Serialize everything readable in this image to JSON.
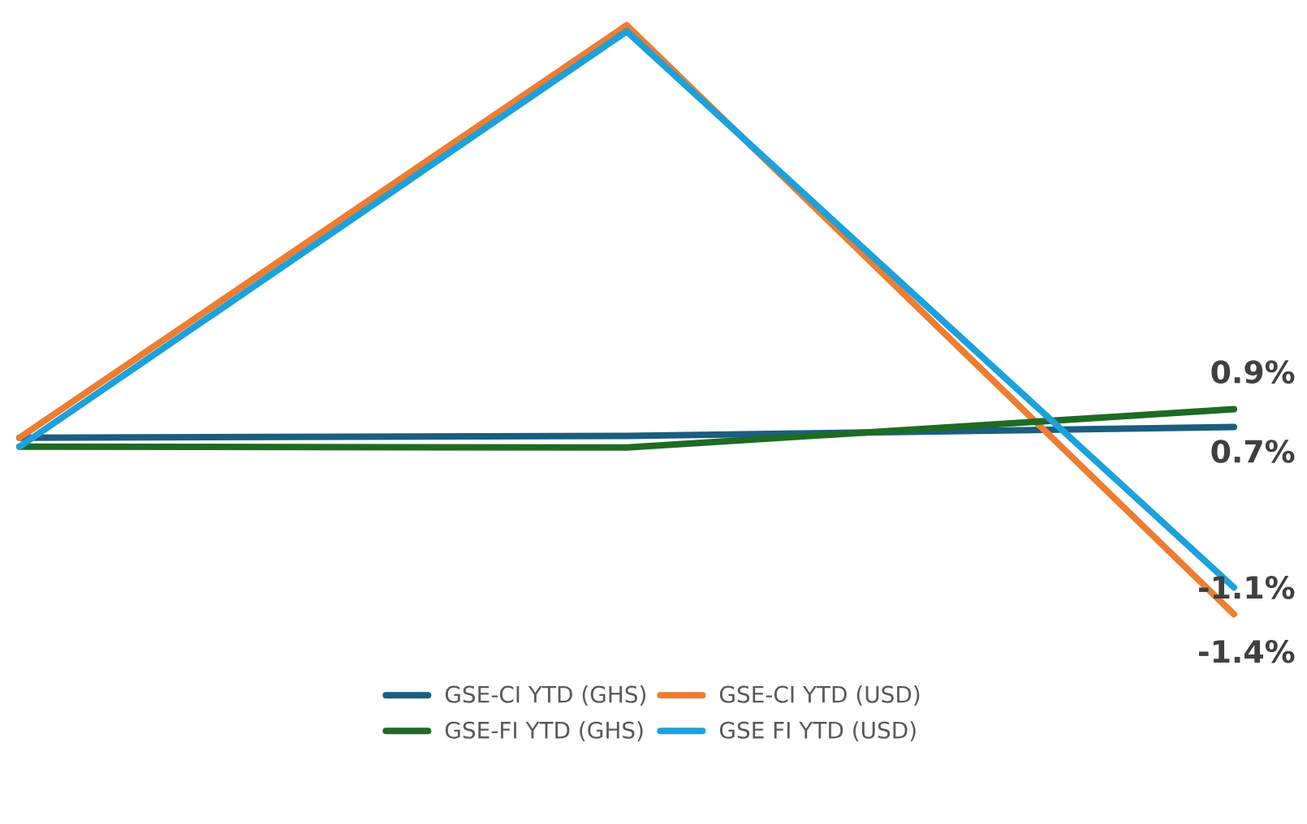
{
  "chart_data": {
    "type": "line",
    "categories": [
      null,
      null,
      null
    ],
    "legend": "bottom",
    "marker": "none",
    "line_style": "solid",
    "series": [
      {
        "name": "GSE-CI YTD (GHS)",
        "color": "#1b5e80",
        "values": [
          0.58,
          0.6,
          0.7
        ],
        "value_labels": [
          null,
          null,
          "0.7%"
        ]
      },
      {
        "name": "GSE-CI YTD (USD)",
        "color": "#ed7d31",
        "values": [
          0.58,
          5.21,
          -1.4
        ],
        "value_labels": [
          null,
          null,
          "-1.4%"
        ]
      },
      {
        "name": "GSE-FI YTD (GHS)",
        "color": "#1e6b25",
        "values": [
          0.48,
          0.47,
          0.9
        ],
        "value_labels": [
          null,
          null,
          "0.9%"
        ]
      },
      {
        "name": "GSE FI YTD (USD)",
        "color": "#1ba1dc",
        "values": [
          0.48,
          5.14,
          -1.1
        ],
        "value_labels": [
          null,
          null,
          "-1.1%"
        ]
      }
    ]
  }
}
